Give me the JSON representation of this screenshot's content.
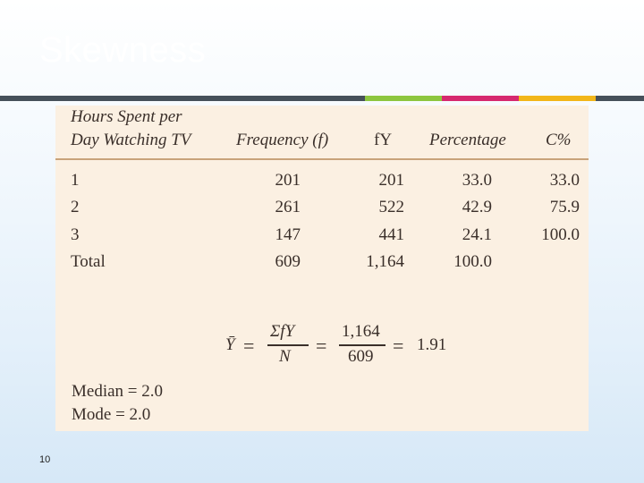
{
  "slide": {
    "title": "Skewness",
    "page_number": "10"
  },
  "colors": {
    "bar_dark": "#46505a",
    "bar_green": "#8dc63f",
    "bar_pink": "#d6286f",
    "bar_yellow": "#f2b61a",
    "panel": "#fbf0e2"
  },
  "table": {
    "headers": {
      "col1_line1": "Hours Spent per",
      "col1_line2": "Day Watching TV",
      "col2": "Frequency (f)",
      "col3": "fY",
      "col4": "Percentage",
      "col5": "C%"
    },
    "rows": [
      {
        "hours": "1",
        "freq": "201",
        "fy": "201",
        "pct": "33.0",
        "cpct": "33.0"
      },
      {
        "hours": "2",
        "freq": "261",
        "fy": "522",
        "pct": "42.9",
        "cpct": "75.9"
      },
      {
        "hours": "3",
        "freq": "147",
        "fy": "441",
        "pct": "24.1",
        "cpct": "100.0"
      },
      {
        "hours": "Total",
        "freq": "609",
        "fy": "1,164",
        "pct": "100.0",
        "cpct": ""
      }
    ]
  },
  "formula": {
    "lhs": "Ȳ",
    "eq1": "=",
    "num1": "ΣfY",
    "den1": "N",
    "eq2": "=",
    "num2": "1,164",
    "den2": "609",
    "eq3": "=",
    "result": "1.91"
  },
  "stats": {
    "median": "Median = 2.0",
    "mode": "Mode = 2.0"
  }
}
